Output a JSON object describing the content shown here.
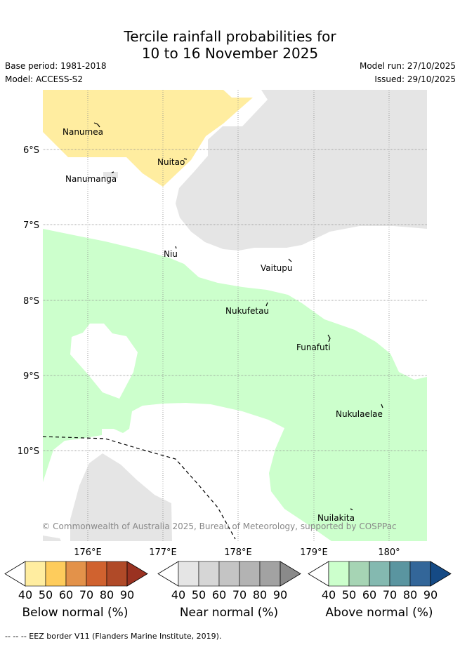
{
  "title": {
    "line1": "Tercile rainfall probabilities for",
    "line2": "10 to 16 November 2025"
  },
  "meta": {
    "base_period": "Base period: 1981-2018",
    "model": "Model: ACCESS-S2",
    "model_run": "Model run: 27/10/2025",
    "issued": "Issued: 29/10/2025"
  },
  "map": {
    "lat_labels": [
      "6°S",
      "7°S",
      "8°S",
      "9°S",
      "10°S"
    ],
    "lon_labels": [
      "176°E",
      "177°E",
      "178°E",
      "179°E",
      "180°"
    ],
    "islands": [
      "Nanumea",
      "Nuitao",
      "Nanumanga",
      "Niu",
      "Vaitupu",
      "Nukufetau",
      "Funafuti",
      "Nukulaelae",
      "Nuilakita"
    ],
    "copyright": "© Commonwealth of Australia 2025, Bureau of Meteorology, supported by COSPPac",
    "colors": {
      "below_normal_region": "#ffeda0",
      "near_normal_region": "#e5e5e5",
      "above_normal_region": "#ccffcc"
    }
  },
  "colorbars": [
    {
      "label": "Below normal (%)",
      "ticks": [
        "40",
        "50",
        "60",
        "70",
        "80",
        "90"
      ],
      "colors": [
        "#ffeda0",
        "#fecc5c",
        "#e3924a",
        "#d0622f",
        "#b04a28",
        "#9a3221"
      ]
    },
    {
      "label": "Near normal (%)",
      "ticks": [
        "40",
        "50",
        "60",
        "70",
        "80",
        "90"
      ],
      "colors": [
        "#e5e5e5",
        "#d6d6d6",
        "#c4c4c4",
        "#b3b3b3",
        "#a2a2a2",
        "#8a8a8a"
      ]
    },
    {
      "label": "Above normal (%)",
      "ticks": [
        "40",
        "50",
        "60",
        "70",
        "80",
        "90"
      ],
      "colors": [
        "#ccffcc",
        "#a6d4b4",
        "#84b9b0",
        "#5a95a0",
        "#336699",
        "#154a85"
      ]
    }
  ],
  "footnote": "--  --  -- EEZ border V11 (Flanders Marine Institute, 2019)."
}
